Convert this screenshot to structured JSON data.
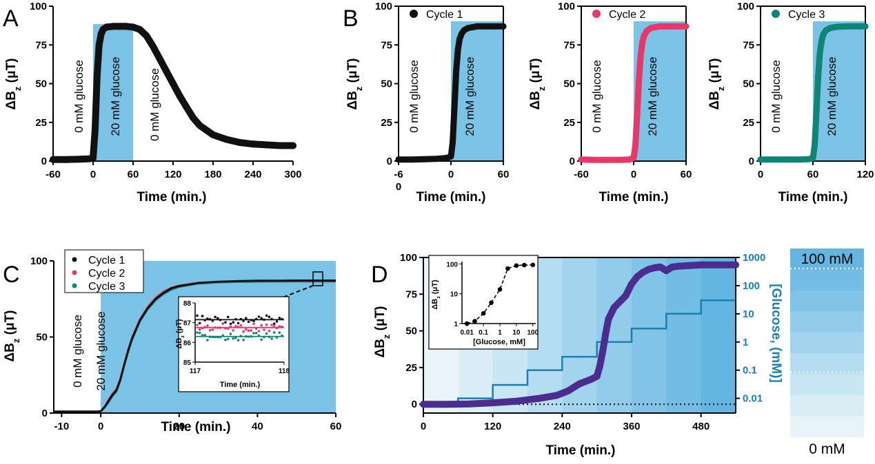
{
  "colors": {
    "cycle1": "#111111",
    "cycle2": "#e8386a",
    "cycle3": "#0f8577",
    "bg_blue": "#7ac3e6",
    "d_series": "#4b2d8f",
    "glucose_step": "#1b7fb3",
    "glucose_axis": "#1a7fb5"
  },
  "labels": {
    "ylabel_main": "ΔB",
    "ylabel_sub": "z",
    "ylabel_unit": " (μT)",
    "xlabel_main": "Time (min.)",
    "zero_glucose": "0 mM glucose",
    "twenty_glucose": "20 mM glucose",
    "glucose_axis": "[Glucose, (mM)]",
    "scale_top": "100 mM",
    "scale_bottom": "0 mM"
  },
  "chart_data": [
    {
      "panel": "A",
      "type": "scatter",
      "xlabel": "Time (min.)",
      "ylabel": "ΔBz (μT)",
      "xlim": [
        -60,
        300
      ],
      "ylim": [
        0,
        100
      ],
      "xticks": [
        "-60",
        "0",
        "60",
        "120",
        "180",
        "240",
        "300"
      ],
      "yticks": [
        "0",
        "25",
        "50",
        "75",
        "100"
      ],
      "shaded_region": [
        0,
        60
      ],
      "annotations": [
        "0 mM glucose",
        "20 mM glucose",
        "0 mM glucose"
      ],
      "x": [
        -60,
        -40,
        -20,
        -5,
        0,
        3,
        6,
        9,
        12,
        15,
        20,
        30,
        40,
        50,
        60,
        70,
        80,
        90,
        100,
        110,
        120,
        130,
        140,
        150,
        160,
        170,
        180,
        200,
        220,
        240,
        260,
        280,
        300
      ],
      "y": [
        1,
        1,
        1.2,
        1.5,
        2,
        20,
        55,
        75,
        82,
        85,
        86.5,
        87,
        87,
        87,
        86.5,
        85,
        81,
        74,
        66,
        58,
        50,
        42,
        35,
        28,
        23,
        20,
        17,
        14,
        12,
        11,
        10.5,
        10,
        10
      ]
    },
    {
      "panel": "B1",
      "type": "scatter",
      "series_name": "Cycle 1",
      "xlabel": "Time (min.)",
      "ylabel": "ΔBz (μT)",
      "xlim": [
        -60,
        60
      ],
      "ylim": [
        0,
        100
      ],
      "xticks": [
        "-6",
        "0",
        "60"
      ],
      "xtick_extra": "0",
      "yticks": [
        "0",
        "25",
        "50",
        "75",
        "100"
      ],
      "shaded_region": [
        0,
        60
      ],
      "annotations": [
        "0 mM glucose",
        "20 mM glucose"
      ],
      "x": [
        -60,
        -45,
        -30,
        -15,
        -5,
        0,
        2,
        4,
        6,
        8,
        10,
        12,
        15,
        20,
        25,
        30,
        40,
        50,
        60
      ],
      "y": [
        1,
        1,
        1.2,
        1.5,
        2,
        3,
        12,
        35,
        58,
        72,
        79,
        82,
        84.5,
        86,
        86.5,
        87,
        87,
        87,
        87
      ]
    },
    {
      "panel": "B2",
      "type": "scatter",
      "series_name": "Cycle 2",
      "xlabel": "Time (min.)",
      "ylabel": "ΔBz (μT)",
      "xlim": [
        -60,
        60
      ],
      "ylim": [
        0,
        100
      ],
      "xticks": [
        "-60",
        "0",
        "60"
      ],
      "yticks": [
        "0",
        "25",
        "50",
        "75",
        "100"
      ],
      "shaded_region": [
        0,
        60
      ],
      "annotations": [
        "0 mM glucose",
        "20 mM glucose"
      ],
      "x": [
        -60,
        -45,
        -30,
        -15,
        -5,
        0,
        2,
        4,
        6,
        8,
        10,
        12,
        15,
        20,
        25,
        30,
        40,
        50,
        60
      ],
      "y": [
        1,
        0.8,
        0.8,
        0.8,
        1,
        2,
        10,
        30,
        52,
        68,
        77,
        81,
        84,
        86,
        86.5,
        87,
        87,
        87,
        87
      ]
    },
    {
      "panel": "B3",
      "type": "scatter",
      "series_name": "Cycle 3",
      "xlabel": "Time (min.)",
      "ylabel": "ΔBz (μT)",
      "xlim": [
        0,
        120
      ],
      "ylim": [
        0,
        100
      ],
      "xticks": [
        "0",
        "60",
        "120"
      ],
      "yticks": [
        "0",
        "25",
        "50",
        "75",
        "100"
      ],
      "shaded_region": [
        60,
        120
      ],
      "annotations": [
        "0 mM glucose",
        "20 mM glucose"
      ],
      "x": [
        0,
        15,
        30,
        45,
        55,
        60,
        62,
        64,
        66,
        68,
        70,
        72,
        75,
        80,
        85,
        90,
        100,
        110,
        120
      ],
      "y": [
        1,
        1,
        1,
        1,
        1.2,
        2,
        10,
        32,
        55,
        70,
        78,
        82,
        84.5,
        86,
        86.5,
        86.8,
        87,
        87,
        87
      ]
    },
    {
      "panel": "C",
      "type": "line",
      "xlabel": "Time (min.)",
      "ylabel": "ΔBz (μT)",
      "xlim": [
        -12,
        60
      ],
      "ylim": [
        0,
        100
      ],
      "xticks": [
        "-10",
        "0",
        "20",
        "40",
        "60"
      ],
      "yticks": [
        "0",
        "50",
        "100"
      ],
      "shaded_region": [
        0,
        60
      ],
      "annotations": [
        "0 mM glucose",
        "20 mM glucose"
      ],
      "x": [
        -12,
        -8,
        -4,
        -1,
        0,
        1,
        2,
        3,
        4,
        5,
        6,
        7,
        8,
        10,
        12,
        14,
        16,
        18,
        20,
        25,
        30,
        35,
        40,
        45,
        50,
        55,
        60
      ],
      "series": [
        {
          "name": "Cycle 1",
          "values": [
            1,
            1,
            1,
            1,
            1.2,
            4,
            8,
            12,
            15,
            22,
            32,
            41,
            49,
            61,
            69,
            75,
            79,
            82,
            83.5,
            85.5,
            86.3,
            86.7,
            87,
            87,
            87.1,
            87.1,
            87.1
          ]
        },
        {
          "name": "Cycle 2",
          "values": [
            1,
            1,
            1,
            1,
            1.2,
            4.5,
            9,
            13,
            16,
            23,
            33,
            42,
            50,
            62,
            70,
            76,
            80,
            82.5,
            84,
            85.8,
            86.4,
            86.6,
            86.7,
            86.8,
            86.8,
            86.8,
            86.8
          ]
        },
        {
          "name": "Cycle 3",
          "values": [
            1,
            1,
            1,
            1,
            1.2,
            3.5,
            7,
            11,
            14,
            21,
            31,
            40,
            48,
            60,
            68,
            74,
            78,
            81,
            82.8,
            85,
            85.8,
            86.1,
            86.2,
            86.3,
            86.3,
            86.3,
            86.3
          ]
        }
      ],
      "inset": {
        "xlabel": "Time (min.)",
        "ylabel": "ΔBz (μT)",
        "xlim": [
          117,
          118
        ],
        "ylim": [
          85,
          88
        ],
        "xticks": [
          "117",
          "118"
        ],
        "yticks": [
          "85",
          "86",
          "87",
          "88"
        ],
        "levels": [
          {
            "name": "Cycle 1",
            "mean": 87.15
          },
          {
            "name": "Cycle 2",
            "mean": 86.75
          },
          {
            "name": "Cycle 3",
            "mean": 86.3
          }
        ]
      }
    },
    {
      "panel": "D",
      "type": "scatter",
      "xlabel": "Time (min.)",
      "ylabel": "ΔBz (μT)",
      "xlim": [
        0,
        540
      ],
      "ylim": [
        -6,
        100
      ],
      "xticks": [
        "0",
        "120",
        "240",
        "360",
        "480"
      ],
      "yticks": [
        "0",
        "25",
        "50",
        "75",
        "100"
      ],
      "right_axis": {
        "label": "[Glucose, (mM)]",
        "scale": "log",
        "ticks": [
          "0.01",
          "0.1",
          "1",
          "10",
          "100",
          "1000"
        ]
      },
      "glucose_steps": {
        "t": [
          0,
          60,
          120,
          180,
          240,
          300,
          360,
          420,
          480,
          540
        ],
        "glucose_mM": [
          0.005,
          0.01,
          0.03,
          0.1,
          0.3,
          1,
          3,
          10,
          30,
          100
        ]
      },
      "x": [
        0,
        40,
        80,
        120,
        160,
        200,
        230,
        250,
        270,
        290,
        300,
        305,
        310,
        315,
        320,
        330,
        340,
        350,
        360,
        370,
        380,
        390,
        400,
        410,
        420,
        430,
        440,
        460,
        480,
        500,
        520,
        540
      ],
      "y": [
        0,
        0,
        0.2,
        1,
        2,
        4,
        6,
        9,
        14,
        17,
        19,
        26,
        36,
        48,
        58,
        66,
        70,
        74,
        82,
        87,
        90,
        92,
        93,
        93.5,
        91,
        93.5,
        94,
        94.5,
        95,
        95,
        95,
        95
      ],
      "inset": {
        "xlabel": "[Glucose, mM]",
        "ylabel": "ΔBz (μT)",
        "xscale": "log",
        "yscale": "log",
        "xticks": [
          "0.01",
          "0.1",
          "1",
          "10",
          "100"
        ],
        "yticks": [
          "1",
          "10",
          "100"
        ],
        "x": [
          0.01,
          0.03,
          0.1,
          0.3,
          1,
          3,
          10,
          30,
          100
        ],
        "y": [
          1,
          1.2,
          2.2,
          5,
          14,
          70,
          88,
          92,
          93
        ]
      }
    }
  ]
}
